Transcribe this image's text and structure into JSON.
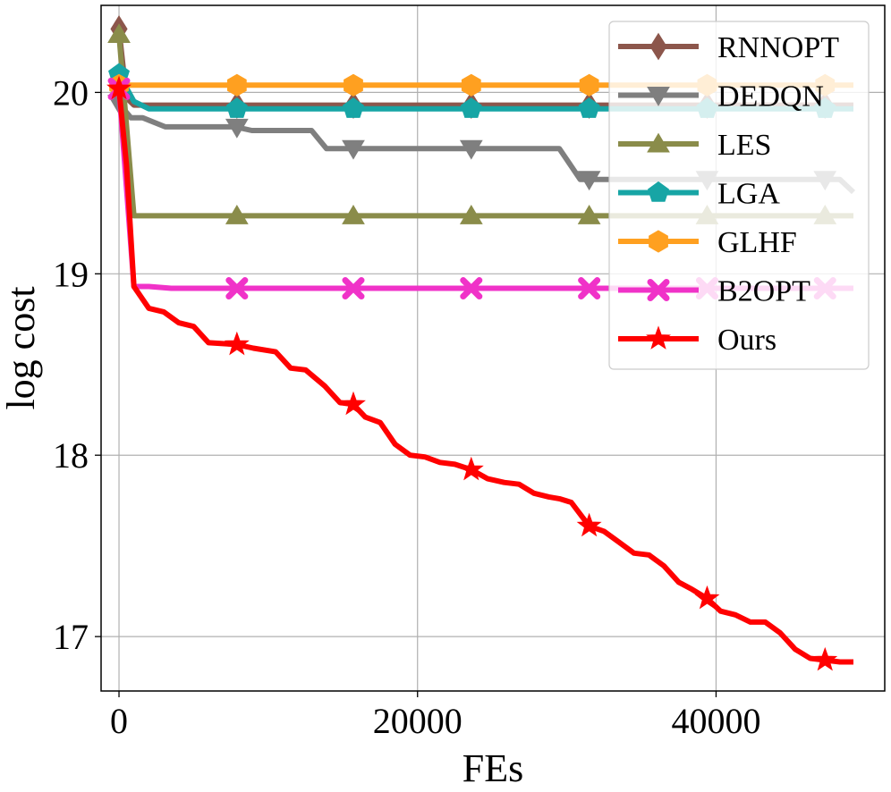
{
  "chart_data": {
    "type": "line",
    "title": "",
    "xlabel": "FEs",
    "ylabel": "log cost",
    "xlim": [
      -1200,
      51300
    ],
    "ylim": [
      16.7,
      20.48
    ],
    "xticks": [
      0,
      20000,
      40000
    ],
    "xtick_labels": [
      "0",
      "20000",
      "40000"
    ],
    "yticks": [
      17,
      18,
      19,
      20
    ],
    "ytick_labels": [
      "17",
      "18",
      "19",
      "20"
    ],
    "grid": true,
    "legend_position": "top-right",
    "series": [
      {
        "name": "RNNOPT",
        "color": "#8c564b",
        "marker": "diamond",
        "x": [
          0,
          500,
          1000,
          49200
        ],
        "y": [
          20.35,
          19.97,
          19.93,
          19.93
        ],
        "markers_x": [
          0,
          7900,
          15700,
          23600,
          31500,
          39400,
          47300
        ]
      },
      {
        "name": "DEDQN",
        "color": "#7f7f7f",
        "marker": "triangle-down",
        "x": [
          0,
          800,
          1600,
          3100,
          7800,
          8900,
          12900,
          13900,
          29500,
          30900,
          48300,
          49200
        ],
        "y": [
          19.94,
          19.86,
          19.86,
          19.81,
          19.81,
          19.79,
          19.79,
          19.69,
          19.69,
          19.52,
          19.52,
          19.45
        ],
        "markers_x": [
          0,
          7900,
          15700,
          23600,
          31500,
          39400,
          47300
        ]
      },
      {
        "name": "LES",
        "color": "#8a8c4a",
        "marker": "triangle-up",
        "x": [
          0,
          1000,
          49200
        ],
        "y": [
          20.32,
          19.32,
          19.32
        ],
        "markers_x": [
          0,
          7900,
          15700,
          23600,
          31500,
          39400,
          47300
        ]
      },
      {
        "name": "LGA",
        "color": "#17a5a5",
        "marker": "pentagon",
        "x": [
          0,
          1000,
          2000,
          49200
        ],
        "y": [
          20.1,
          19.95,
          19.91,
          19.91
        ],
        "markers_x": [
          0,
          7900,
          15700,
          23600,
          31500,
          39400,
          47300
        ]
      },
      {
        "name": "GLHF",
        "color": "#ffa020",
        "marker": "hexagon",
        "x": [
          0,
          49200
        ],
        "y": [
          20.04,
          20.04
        ],
        "markers_x": [
          0,
          7900,
          15700,
          23600,
          31500,
          39400,
          47300
        ]
      },
      {
        "name": "B2OPT",
        "color": "#f032c8",
        "marker": "x",
        "x": [
          0,
          1000,
          2000,
          3500,
          49200
        ],
        "y": [
          20.02,
          18.93,
          18.93,
          18.92,
          18.92
        ],
        "markers_x": [
          0,
          7900,
          15700,
          23600,
          31500,
          39400,
          47300
        ]
      },
      {
        "name": "Ours",
        "color": "#ff0000",
        "marker": "star",
        "x": [
          0,
          500,
          1000,
          2000,
          3000,
          4000,
          5000,
          6000,
          7900,
          9000,
          10500,
          11500,
          12500,
          13800,
          14800,
          15700,
          16500,
          17500,
          18500,
          19500,
          20500,
          21500,
          22500,
          23600,
          24700,
          25800,
          26800,
          27800,
          28800,
          29500,
          30300,
          31500,
          32500,
          33500,
          34500,
          35500,
          36500,
          37500,
          38400,
          39400,
          40300,
          41300,
          42300,
          43300,
          44300,
          45300,
          46300,
          47300,
          48300,
          49200
        ],
        "y": [
          20.02,
          19.6,
          18.93,
          18.81,
          18.79,
          18.73,
          18.71,
          18.62,
          18.61,
          18.59,
          18.57,
          18.48,
          18.47,
          18.38,
          18.29,
          18.28,
          18.21,
          18.18,
          18.06,
          18.0,
          17.99,
          17.96,
          17.95,
          17.92,
          17.87,
          17.85,
          17.84,
          17.79,
          17.77,
          17.76,
          17.74,
          17.61,
          17.58,
          17.52,
          17.46,
          17.45,
          17.39,
          17.3,
          17.26,
          17.21,
          17.14,
          17.12,
          17.08,
          17.08,
          17.02,
          16.93,
          16.88,
          16.87,
          16.86,
          16.86
        ],
        "markers_x": [
          0,
          7900,
          15700,
          23600,
          31500,
          39400,
          47300
        ]
      }
    ]
  }
}
